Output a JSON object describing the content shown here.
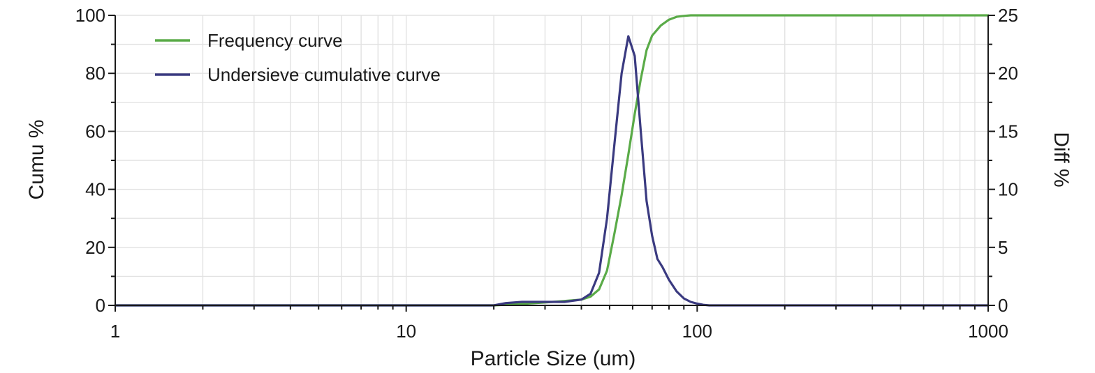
{
  "chart_data": {
    "type": "line",
    "title": "",
    "xlabel": "Particle Size (um)",
    "ylabel_left": "Cumu %",
    "ylabel_right": "Diff %",
    "x_scale": "log",
    "xlim": [
      1,
      1000
    ],
    "ylim_left": [
      0,
      100
    ],
    "ylim_right": [
      0,
      25
    ],
    "grid": true,
    "legend_position": "top-left",
    "x_ticks": [
      "1",
      "10",
      "100",
      "1000"
    ],
    "y_left_ticks": [
      "0",
      "20",
      "40",
      "60",
      "80",
      "100"
    ],
    "y_right_ticks": [
      "0",
      "5",
      "10",
      "15",
      "20",
      "25"
    ],
    "series": [
      {
        "name": "Frequency curve",
        "axis": "left",
        "color": "#5aab48",
        "x": [
          1,
          20,
          25,
          30,
          35,
          40,
          43,
          46,
          49,
          52,
          55,
          58,
          61,
          64,
          67,
          70,
          75,
          80,
          85,
          90,
          95,
          100,
          110,
          120,
          150,
          200,
          500,
          1000
        ],
        "y": [
          0,
          0,
          0.5,
          1,
          1.5,
          2,
          3,
          5.5,
          12,
          25,
          38,
          52,
          66,
          78,
          88,
          93,
          96.5,
          98.5,
          99.5,
          99.8,
          100,
          100,
          100,
          100,
          100,
          100,
          100,
          100
        ]
      },
      {
        "name": "Undersieve cumulative curve",
        "axis": "right",
        "color": "#3a3a80",
        "x": [
          1,
          20,
          22,
          25,
          30,
          35,
          40,
          43,
          46,
          49,
          52,
          55,
          58,
          61,
          64,
          67,
          70,
          73,
          76,
          80,
          85,
          90,
          95,
          100,
          105,
          110,
          120,
          150,
          200,
          500,
          1000
        ],
        "y": [
          0,
          0,
          0.2,
          0.3,
          0.3,
          0.3,
          0.5,
          1,
          2.8,
          7.5,
          14,
          20,
          23.2,
          21.5,
          15,
          9,
          6,
          4,
          3.3,
          2.2,
          1.2,
          0.6,
          0.3,
          0.15,
          0.05,
          0,
          0,
          0,
          0,
          0,
          0
        ]
      }
    ]
  }
}
